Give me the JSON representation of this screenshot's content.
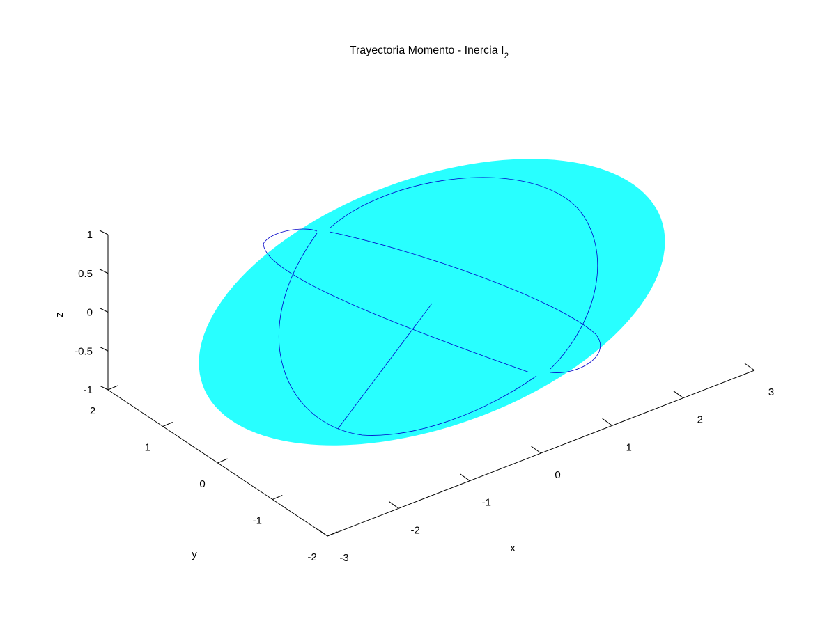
{
  "chart_data": {
    "type": "3d-line",
    "title": "Trayectoria Momento - Inercia",
    "title_subscript": "2",
    "title_letter": "I",
    "xlabel": "x",
    "ylabel": "y",
    "zlabel": "z",
    "xlim": [
      -3,
      3
    ],
    "ylim": [
      -2,
      2
    ],
    "zlim": [
      -1,
      1
    ],
    "xticks": [
      -3,
      -2,
      -1,
      0,
      1,
      2,
      3
    ],
    "xtick_labels": [
      "-3",
      "-2",
      "-1",
      "0",
      "1",
      "2",
      "3"
    ],
    "yticks": [
      -2,
      -1,
      0,
      1,
      2
    ],
    "ytick_labels": [
      "-2",
      "-1",
      "0",
      "1",
      "2"
    ],
    "zticks": [
      -1,
      -0.5,
      0,
      0.5,
      1
    ],
    "ztick_labels": [
      "-1",
      "-0.5",
      "0",
      "0.5",
      "1"
    ],
    "grid": false,
    "surface": {
      "shape": "ellipsoid",
      "semi_axes": [
        3,
        2,
        1
      ],
      "color": "#28ffff"
    },
    "trajectory": {
      "color": "#0000c8",
      "description": "momentum trajectory curves on ellipsoid"
    }
  }
}
